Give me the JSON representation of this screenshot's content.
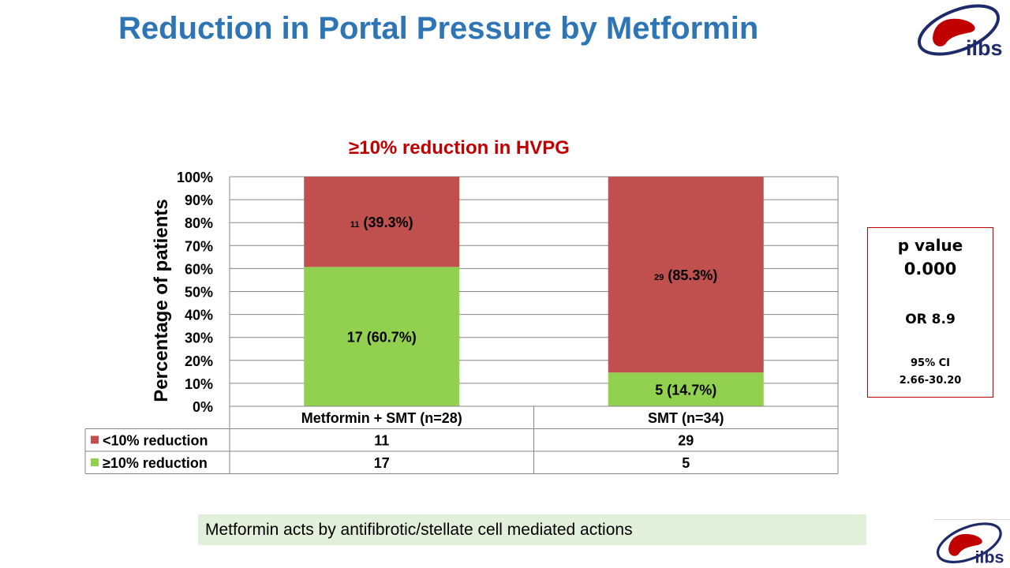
{
  "slide": {
    "title": "Reduction in Portal Pressure by Metformin"
  },
  "logo": {
    "text": "ilbs"
  },
  "chart_data": {
    "type": "bar",
    "stacked": true,
    "title": "≥10% reduction in HVPG",
    "ylabel": "Percentage of patients",
    "xlabel": "",
    "ylim": [
      0,
      100
    ],
    "y_ticks": [
      "0%",
      "10%",
      "20%",
      "30%",
      "40%",
      "50%",
      "60%",
      "70%",
      "80%",
      "90%",
      "100%"
    ],
    "categories": [
      "Metformin + SMT (n=28)",
      "SMT (n=34)"
    ],
    "series": [
      {
        "name": "≥10% reduction",
        "color": "#92d050",
        "counts": [
          17,
          5
        ],
        "percents": [
          60.7,
          14.7
        ],
        "pct_labels": [
          "(60.7%)",
          "(14.7%)"
        ]
      },
      {
        "name": "<10% reduction",
        "color": "#c0504d",
        "counts": [
          11,
          29
        ],
        "percents": [
          39.3,
          85.3
        ],
        "pct_labels": [
          "(39.3%)",
          "(85.3%)"
        ]
      }
    ],
    "grid": true,
    "legend": "data-table",
    "data_table_rows": [
      {
        "name": "<10% reduction",
        "color": "#c0504d",
        "values": [
          "11",
          "29"
        ]
      },
      {
        "name": "≥10% reduction",
        "color": "#92d050",
        "values": [
          "17",
          "5"
        ]
      }
    ]
  },
  "stats": {
    "p_label": "p value",
    "p_value": "0.000",
    "or": "OR 8.9",
    "ci_label": "95% CI",
    "ci_value": "2.66-30.20"
  },
  "note": "Metformin acts by antifibrotic/stellate cell mediated actions"
}
